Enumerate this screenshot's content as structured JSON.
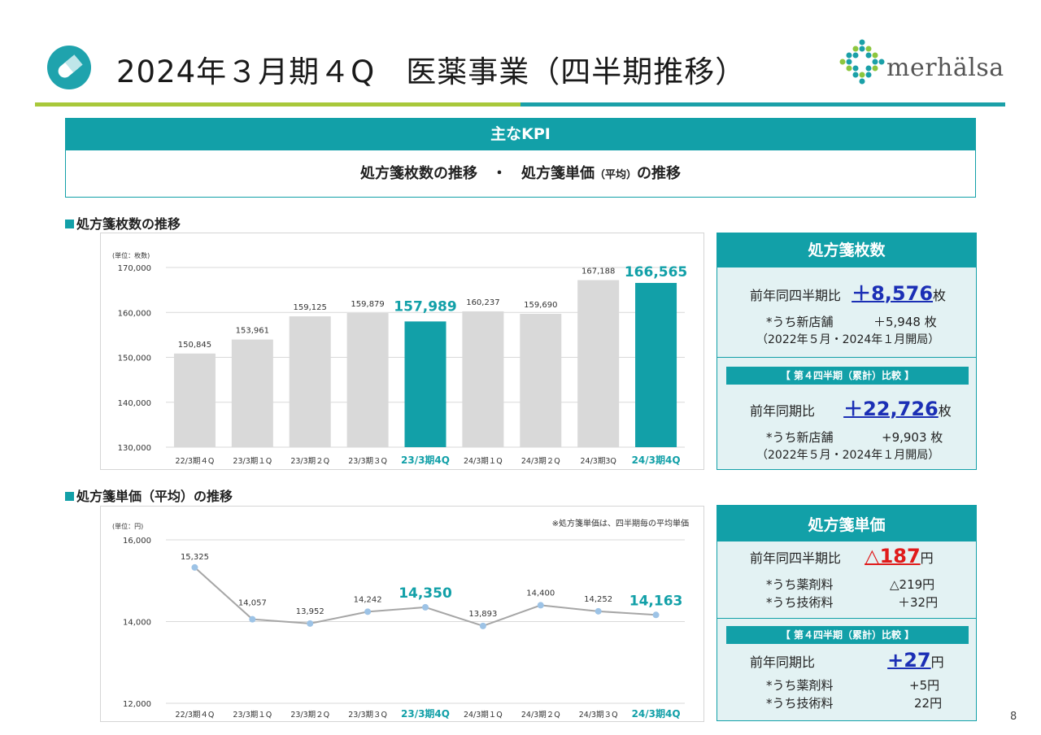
{
  "header": {
    "title": "2024年３月期４Q　医薬事業（四半期推移）",
    "brand": "merhälsa",
    "page_number": "8"
  },
  "kpi": {
    "heading": "主なKPI",
    "sub_a": "処方箋枚数の推移　・　処方箋単価",
    "sub_b": "（平均）",
    "sub_c": "の推移"
  },
  "section1": {
    "title": "処方箋枚数の推移"
  },
  "section2": {
    "title": "処方箋単価（平均）の推移"
  },
  "colors": {
    "teal": "#12a0a8",
    "bar_gray": "#d9d9d9",
    "line": "#a6a6a6",
    "marker": "#9dc3e6"
  },
  "chart_data": [
    {
      "type": "bar",
      "unit_label": "(単位：枚数)",
      "categories": [
        "22/3期４Q",
        "23/3期１Q",
        "23/3期２Q",
        "23/3期３Q",
        "23/3期4Q",
        "24/3期１Q",
        "24/3期２Q",
        "24/3期3Q",
        "24/3期4Q"
      ],
      "values": [
        150845,
        153961,
        159125,
        159879,
        157989,
        160237,
        159690,
        167188,
        166565
      ],
      "value_labels": [
        "150,845",
        "153,961",
        "159,125",
        "159,879",
        "157,989",
        "160,237",
        "159,690",
        "167,188",
        "166,565"
      ],
      "highlight": [
        4,
        8
      ],
      "ylim": [
        130000,
        170000
      ],
      "yticks": [
        130000,
        140000,
        150000,
        160000,
        170000
      ],
      "ytick_labels": [
        "130,000",
        "140,000",
        "150,000",
        "160,000",
        "170,000"
      ],
      "grid": true
    },
    {
      "type": "line",
      "unit_label": "(単位：円)",
      "note": "※処方箋単価は、四半期毎の平均単価",
      "categories": [
        "22/3期４Q",
        "23/3期１Q",
        "23/3期２Q",
        "23/3期３Q",
        "23/3期4Q",
        "24/3期１Q",
        "24/3期２Q",
        "24/3期３Q",
        "24/3期4Q"
      ],
      "values": [
        15325,
        14057,
        13952,
        14242,
        14350,
        13893,
        14400,
        14252,
        14163
      ],
      "value_labels": [
        "15,325",
        "14,057",
        "13,952",
        "14,242",
        "14,350",
        "13,893",
        "14,400",
        "14,252",
        "14,163"
      ],
      "highlight": [
        4,
        8
      ],
      "ylim": [
        12000,
        16000
      ],
      "yticks": [
        12000,
        14000,
        16000
      ],
      "ytick_labels": [
        "12,000",
        "14,000",
        "16,000"
      ],
      "grid": true
    }
  ],
  "panel1": {
    "title": "処方箋枚数",
    "yoy_label": "前年同四半期比",
    "yoy_value": "＋8,576",
    "yoy_unit": "枚",
    "new_store_label": "*うち新店舗",
    "new_store_value": "＋5,948 枚",
    "period_note": "（2022年５月・2024年１月開局）",
    "cum_head": "【 第４四半期（累計）比較 】",
    "cum_label": "前年同期比",
    "cum_value": "＋22,726",
    "cum_unit": "枚",
    "cum_new_store_label": "*うち新店舗",
    "cum_new_store_value": "+9,903 枚",
    "cum_period_note": "（2022年５月・2024年１月開局）"
  },
  "panel2": {
    "title": "処方箋単価",
    "yoy_label": "前年同四半期比",
    "yoy_value": "△187",
    "yoy_unit": "円",
    "drug_label": "*うち薬剤料",
    "drug_value": "△219円",
    "tech_label": "*うち技術料",
    "tech_value": "＋32円",
    "cum_head": "【 第４四半期（累計）比較 】",
    "cum_label": "前年同期比",
    "cum_value": "+27",
    "cum_unit": "円",
    "cum_drug_label": "*うち薬剤料",
    "cum_drug_value": "+5円",
    "cum_tech_label": "*うち技術料",
    "cum_tech_value": "22円"
  }
}
